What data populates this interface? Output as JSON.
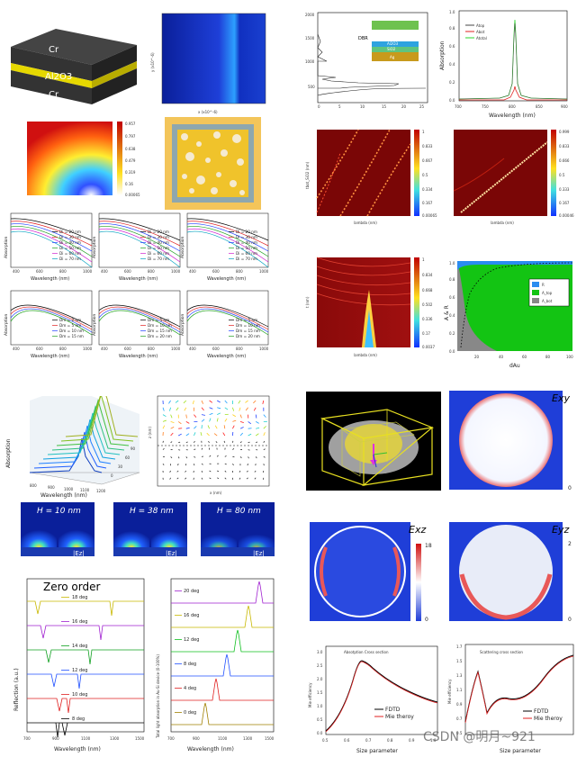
{
  "layer_stack": {
    "top": "Cr",
    "middle": "Al2O3",
    "bottom": "Cr"
  },
  "field_map_small": {
    "xlabel": "x (x10^-6)",
    "ylabel": "y (x10^-6)"
  },
  "transmission_spectrum": {
    "yticks": [
      "2000",
      "1500",
      "1000",
      "500"
    ],
    "xticks": [
      "0",
      "5",
      "10",
      "15",
      "20",
      "25"
    ],
    "dbr_label": "DBR",
    "layers": [
      "Ag",
      "SiO2",
      "Al2O3"
    ]
  },
  "absorption_plot": {
    "ylabel": "Absorption",
    "xlabel": "Wavelength (nm)",
    "xticks": [
      "700",
      "750",
      "800",
      "850",
      "900"
    ],
    "yticks": [
      "0.0",
      "0.2",
      "0.4",
      "0.6",
      "0.8",
      "1.0"
    ],
    "legend": [
      "Atop",
      "Abot",
      "Atotal"
    ]
  },
  "dispersion_maps": {
    "left": {
      "xlabel": "lambda (nm)",
      "ylabel": "tbot_SiO2 (nm)",
      "colorbar": [
        "1",
        "0.833",
        "0.667",
        "0.5",
        "0.334",
        "0.167",
        "0.00065"
      ]
    },
    "right": {
      "xlabel": "lambda (nm)",
      "ylabel": "",
      "colorbar": [
        "0.999",
        "0.833",
        "0.666",
        "0.5",
        "0.333",
        "0.167",
        "0.00046"
      ]
    }
  },
  "heatmap_small": {
    "colorbar": [
      "0.957",
      "0.797",
      "0.638",
      "0.479",
      "0.319",
      "0.16",
      "0.00065"
    ]
  },
  "sweep_map": {
    "colorbar": [
      "1",
      "0.834",
      "0.668",
      "0.502",
      "0.336",
      "0.17",
      "0.0037"
    ],
    "xlabel": "lambda (nm)",
    "ylabel": "t (nm)"
  },
  "stack_fraction": {
    "ylabel": "A & R",
    "xlabel": "dAu",
    "xticks": [
      "20",
      "40",
      "60",
      "80",
      "100"
    ],
    "yticks": [
      "0.0",
      "0.2",
      "0.4",
      "0.6",
      "0.8",
      "1.0"
    ],
    "legend": [
      "R",
      "A_top",
      "A_bot"
    ]
  },
  "di_plots": {
    "legend": [
      "Di = 20 nm",
      "Di = 30 nm",
      "Di = 40 nm",
      "Di = 50 nm",
      "Di = 60 nm",
      "Di = 70 nm"
    ],
    "xlabel": "Wavelength (nm)",
    "ylabel": "Absorption",
    "xticks": [
      "400",
      "600",
      "800",
      "1000"
    ]
  },
  "dm_plots": {
    "legend": [
      "Dm = 2 nm",
      "Dm = 5 nm",
      "Dm = 10 nm",
      "Dm = 15 nm"
    ],
    "legend_b": [
      "Dm = 5 nm",
      "Dm = 10 nm",
      "Dm = 15 nm",
      "Dm = 20 nm"
    ],
    "xlabel": "Wavelength (nm)",
    "ylabel": "Absorption"
  },
  "waterfall": {
    "ylabel": "Absorption",
    "xlabel": "Wavelength (nm)",
    "xticks": [
      "800",
      "900",
      "1000",
      "1100",
      "1200"
    ],
    "depth_ticks": [
      "90",
      "60",
      "30",
      "0"
    ]
  },
  "vector_field": {
    "xlabel": "x (nm)",
    "ylabel": "z (nm)"
  },
  "ez_maps": [
    {
      "h": "H = 10 nm",
      "tag": "|Ez|"
    },
    {
      "h": "H = 38 nm",
      "tag": "|Ez|"
    },
    {
      "h": "H = 80 nm",
      "tag": "|Ez|"
    }
  ],
  "zero_order": {
    "title": "Zero order",
    "ylabel": "Reflection (a.u.)",
    "xlabel": "Wavelength (nm)",
    "xticks": [
      "700",
      "900",
      "1100",
      "1300",
      "1500"
    ],
    "degs": [
      "18 deg",
      "16 deg",
      "14 deg",
      "12 deg",
      "10 deg",
      "8 deg"
    ]
  },
  "total_abs": {
    "ylabel": "Total light absorption in Au-Si device (0-100%)",
    "xlabel": "Wavelength (nm)",
    "xticks": [
      "700",
      "900",
      "1100",
      "1300",
      "1500"
    ],
    "degs": [
      "20 deg",
      "16 deg",
      "12 deg",
      "8 deg",
      "4 deg",
      "0 deg"
    ]
  },
  "field_maps": {
    "exy": "Exy",
    "exz": "Exz",
    "eyz": "Eyz",
    "exz_max": "18",
    "exz_min": "0",
    "eyz_max": "2",
    "exy_min": "0",
    "eyz_min": "0"
  },
  "mie_abs": {
    "title": "Absotption Cross section",
    "ylabel": "Mie efficiency",
    "xlabel": "Size parameter",
    "xticks": [
      "0.5",
      "0.6",
      "0.7",
      "0.8",
      "0.9",
      "1.0"
    ],
    "yticks": [
      "0.0",
      "0.5",
      "1.0",
      "1.5",
      "2.0",
      "2.5",
      "3.0"
    ],
    "legend": [
      "FDTD",
      "Mie theroy"
    ]
  },
  "mie_sca": {
    "title": "Scattering cross section",
    "ylabel": "Mie efficiency",
    "xlabel": "Size parameter",
    "yticks": [
      "0.5",
      "0.7",
      "0.9",
      "1.1",
      "1.3",
      "1.5",
      "1.7"
    ],
    "legend": [
      "FDTD",
      "Mie theroy"
    ]
  },
  "watermark": "CSDN @明月~921"
}
